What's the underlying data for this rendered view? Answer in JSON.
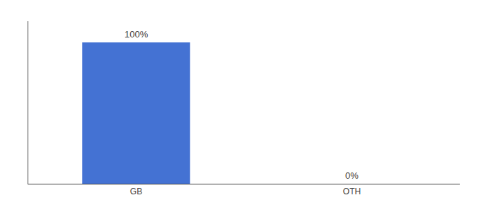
{
  "chart_data": {
    "type": "bar",
    "categories": [
      "GB",
      "OTH"
    ],
    "values": [
      100,
      0
    ],
    "value_labels": [
      "100%",
      "0%"
    ],
    "data_labels": true,
    "color": "#4472d3",
    "ylim": [
      0,
      115
    ],
    "tick_labels": "x",
    "grid": false
  }
}
